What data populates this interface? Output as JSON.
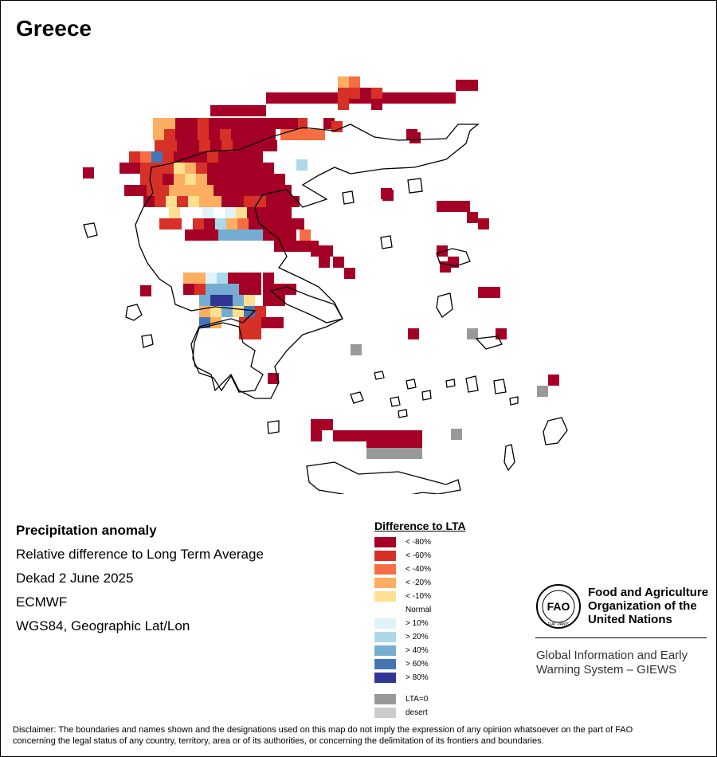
{
  "title": "Greece",
  "info": {
    "heading": "Precipitation anomaly",
    "subheading": "Relative difference to Long Term Average",
    "period": "Dekad 2 June 2025",
    "source": "ECMWF",
    "projection": "WGS84, Geographic Lat/Lon"
  },
  "legend": {
    "title": "Difference to LTA",
    "items": [
      {
        "label": "< -80%",
        "color": "#a50026"
      },
      {
        "label": "< -60%",
        "color": "#d73027"
      },
      {
        "label": "< -40%",
        "color": "#f46d43"
      },
      {
        "label": "< -20%",
        "color": "#fdae61"
      },
      {
        "label": "< -10%",
        "color": "#fee090"
      },
      {
        "label": "Normal",
        "color": "#ffffff"
      },
      {
        "label": "> 10%",
        "color": "#e0f3f8"
      },
      {
        "label": "> 20%",
        "color": "#abd9e9"
      },
      {
        "label": "> 40%",
        "color": "#74add1"
      },
      {
        "label": "> 60%",
        "color": "#4575b4"
      },
      {
        "label": "> 80%",
        "color": "#313695"
      }
    ],
    "extra": [
      {
        "label": "LTA=0",
        "color": "#999999"
      },
      {
        "label": "desert",
        "color": "#cccccc"
      }
    ]
  },
  "organization": {
    "name_lines": [
      "Food and Agriculture",
      "Organization of the",
      "United Nations"
    ],
    "logo_text": "FAO",
    "logo_motto": "FIAT PANIS",
    "system_lines": [
      "Global Information and Early",
      "Warning System – GIEWS"
    ]
  },
  "disclaimer_lines": [
    "Disclaimer: The boundaries and names shown and the designations used on this map do not imply the expression of any opinion whatsoever on the part of FAO",
    "concerning the legal status of any country, territory, area or of its authorities, or concerning the delimitation of its frontiers and boundaries."
  ]
}
